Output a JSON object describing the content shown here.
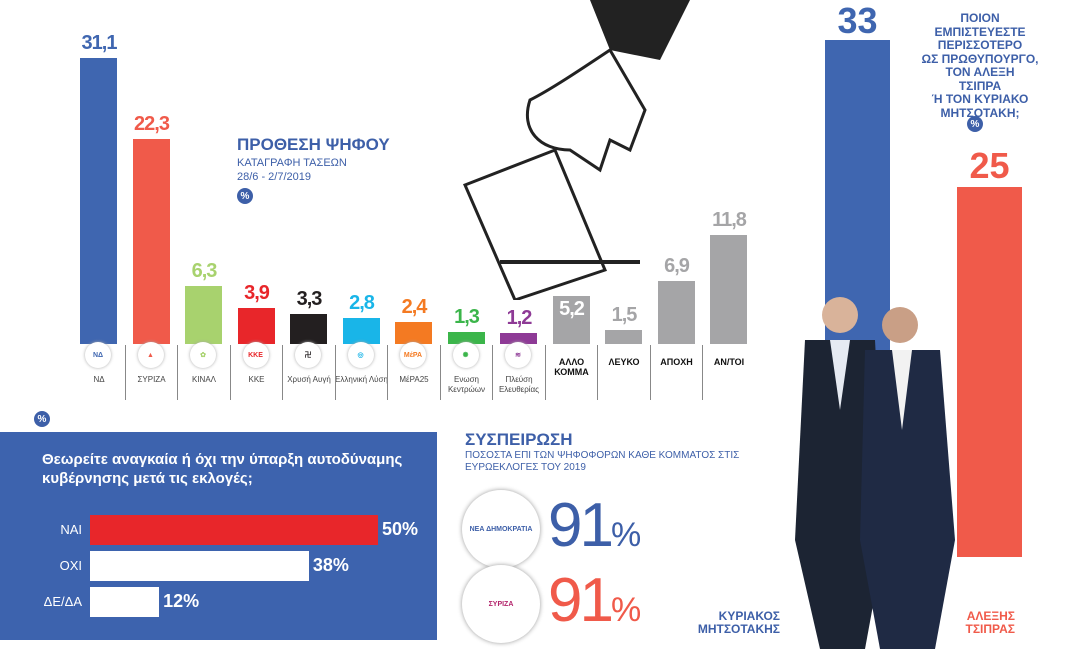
{
  "chart_data": [
    {
      "type": "bar",
      "title": "ΠΡΟΘΕΣΗ ΨΗΦΟΥ",
      "subtitle": "ΚΑΤΑΓΡΑΦΗ ΤΑΣΕΩΝ",
      "date": "28/6 - 2/7/2019",
      "unit": "%",
      "categories": [
        "ΝΔ",
        "ΣΥΡΙΖΑ",
        "ΚΙΝΑΛ",
        "ΚΚΕ",
        "Χρυσή Αυγή",
        "Ελληνική Λύση",
        "ΜέΡΑ25",
        "Ενωση Κεντρώων",
        "Πλεύση Ελευθερίας",
        "ΑΛΛΟ ΚΟΜΜΑ",
        "ΛΕΥΚΟ",
        "ΑΠΟΧΗ",
        "ΑΝ/ΤΟΙ"
      ],
      "values": [
        31.1,
        22.3,
        6.3,
        3.9,
        3.3,
        2.8,
        2.4,
        1.3,
        1.2,
        5.2,
        1.5,
        6.9,
        11.8
      ],
      "labels": [
        "31,1",
        "22,3",
        "6,3",
        "3,9",
        "3,3",
        "2,8",
        "2,4",
        "1,3",
        "1,2",
        "5,2",
        "1,5",
        "6,9",
        "11,8"
      ],
      "colors": [
        "#3f66b0",
        "#f05a4a",
        "#a8d26e",
        "#e8262a",
        "#231f20",
        "#19b5e8",
        "#f47a22",
        "#3bb54a",
        "#8e3a96",
        "#a5a5a7",
        "#a5a5a7",
        "#a5a5a7",
        "#a5a5a7"
      ],
      "logos": [
        "ΝΔ",
        "▲",
        "✿",
        "ΚΚΕ",
        "卍",
        "◎",
        "ΜέΡΑ",
        "✺",
        "≋",
        "",
        "",
        "",
        ""
      ]
    },
    {
      "type": "bar",
      "title": "ΠΟΙΟΝ ΕΜΠΙΣΤΕΥΕΣΤΕ ΠΕΡΙΣΣΟΤΕΡΟ ΩΣ ΠΡΩΘΥΠΟΥΡΓΟ, ΤΟΝ ΑΛΕΞΗ ΤΣΙΠΡΑ Ή ΤΟΝ ΚΥΡΙΑΚΟ ΜΗΤΣΟΤΑΚΗ;",
      "unit": "%",
      "categories": [
        "ΚΥΡΙΑΚΟΣ ΜΗΤΣΟΤΑΚΗΣ",
        "ΑΛΕΞΗΣ ΤΣΙΠΡΑΣ"
      ],
      "values": [
        33,
        25
      ],
      "labels": [
        "33",
        "25"
      ],
      "colors": [
        "#3f66b0",
        "#f05a4a"
      ]
    },
    {
      "type": "bar",
      "orientation": "horizontal",
      "title": "Θεωρείτε αναγκαία ή όχι την ύπαρξη αυτοδύναμης κυβέρνησης μετά τις εκλογές;",
      "unit": "%",
      "categories": [
        "ΝΑΙ",
        "ΟΧΙ",
        "ΔΕ/ΔΑ"
      ],
      "values": [
        50,
        38,
        12
      ],
      "labels": [
        "50%",
        "38%",
        "12%"
      ]
    },
    {
      "type": "table",
      "title": "ΣΥΣΠΕΙΡΩΣΗ",
      "subtitle": "ΠΟΣΟΣΤΑ ΕΠΙ ΤΩΝ ΨΗΦΟΦΟΡΩΝ ΚΑΘΕ ΚΟΜΜΑΤΟΣ ΣΤΙΣ ΕΥΡΩΕΚΛΟΓΕΣ ΤΟΥ 2019",
      "rows": [
        {
          "party": "ΝΔ",
          "logo": "ΝΕΑ ΔΗΜΟΚΡΑΤΙΑ",
          "value": 91,
          "label": "91"
        },
        {
          "party": "ΣΥΡΙΖΑ",
          "logo": "ΣΥΡΙΖΑ",
          "value": 91,
          "label": "91"
        }
      ]
    }
  ],
  "pct_symbol": "%",
  "question_lines": [
    "ΠΟΙΟΝ",
    "ΕΜΠΙΣΤΕΥΕΣΤΕ",
    "ΠΕΡΙΣΣΟΤΕΡΟ",
    "ΩΣ ΠΡΩΘΥΠΟΥΡΓΟ,",
    "ΤΟΝ ΑΛΕΞΗ",
    "ΤΣΙΠΡΑ",
    "Ή ΤΟΝ ΚΥΡΙΑΚΟ",
    "ΜΗΤΣΟΤΑΚΗ;"
  ]
}
